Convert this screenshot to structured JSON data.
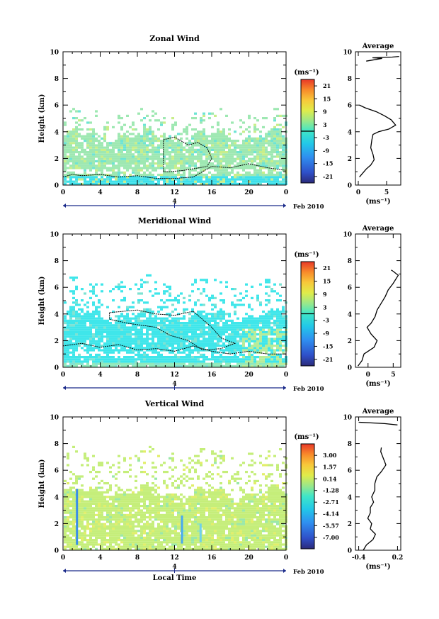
{
  "chart_data": [
    {
      "type": "heatmap",
      "title": "Zonal Wind",
      "ylabel": "Height (km)",
      "xlabel": "",
      "x_ticks": [
        "0",
        "4",
        "8",
        "12",
        "16",
        "20",
        "0"
      ],
      "y_ticks": [
        "0",
        "2",
        "4",
        "6",
        "8",
        "10"
      ],
      "xlim": [
        0,
        24
      ],
      "ylim": [
        0,
        10
      ],
      "date_marker": "4",
      "date_label": "Feb 2010",
      "colorbar": {
        "unit": "(ms⁻¹)",
        "ticks": [
          "21",
          "15",
          "9",
          "3",
          "-3",
          "-9",
          "-15",
          "-21"
        ],
        "range": [
          -24,
          24
        ],
        "zero_line_at": 0
      },
      "field": {
        "base_color": "#9ee8b2",
        "coverage_top_km": 5.4,
        "dense_top_km": 3.8,
        "low_layer_color": "#3ee0ea",
        "low_layer_top_km": 0.7
      },
      "contour_zero": {
        "lower": [
          [
            0,
            0.6
          ],
          [
            1,
            0.8
          ],
          [
            2,
            0.7
          ],
          [
            4,
            0.8
          ],
          [
            6,
            0.6
          ],
          [
            8,
            0.7
          ],
          [
            10,
            0.5
          ],
          [
            12,
            0.5
          ],
          [
            14,
            0.6
          ],
          [
            15,
            1.0
          ],
          [
            16,
            1.4
          ],
          [
            18,
            1.3
          ],
          [
            20,
            1.6
          ],
          [
            22,
            1.3
          ],
          [
            24,
            1.1
          ]
        ],
        "blob": [
          [
            10.8,
            1.0
          ],
          [
            10.8,
            3.4
          ],
          [
            12,
            3.6
          ],
          [
            13.5,
            3.0
          ],
          [
            14.5,
            3.2
          ],
          [
            15.5,
            2.8
          ],
          [
            16,
            2.0
          ],
          [
            15.5,
            1.4
          ],
          [
            13,
            1.1
          ],
          [
            11.5,
            1.0
          ]
        ]
      },
      "average": {
        "title": "Average",
        "xlabel": "(ms⁻¹)",
        "x_ticks": [
          "0",
          "5"
        ],
        "xlim": [
          -0.5,
          7.5
        ],
        "ylim": [
          0,
          10
        ],
        "y_ticks": [
          "0",
          "2",
          "4",
          "6",
          "8",
          "10"
        ],
        "profile": [
          [
            0.2,
            0.6
          ],
          [
            0.8,
            0.9
          ],
          [
            1.4,
            1.2
          ],
          [
            2.2,
            1.5
          ],
          [
            2.8,
            1.9
          ],
          [
            2.6,
            2.3
          ],
          [
            2.2,
            2.8
          ],
          [
            2.4,
            3.4
          ],
          [
            2.6,
            3.8
          ],
          [
            3.6,
            4.0
          ],
          [
            5.4,
            4.2
          ],
          [
            6.6,
            4.5
          ],
          [
            5.8,
            4.9
          ],
          [
            4.6,
            5.2
          ],
          [
            3.2,
            5.5
          ],
          [
            1.2,
            5.8
          ],
          [
            0.2,
            6.0
          ]
        ],
        "profile_top": [
          [
            1.4,
            9.3
          ],
          [
            2.8,
            9.4
          ],
          [
            4.2,
            9.5
          ],
          [
            2.5,
            9.55
          ],
          [
            6.0,
            9.6
          ],
          [
            7.2,
            9.65
          ]
        ]
      }
    },
    {
      "type": "heatmap",
      "title": "Meridional Wind",
      "ylabel": "Height (km)",
      "xlabel": "",
      "x_ticks": [
        "0",
        "4",
        "8",
        "12",
        "16",
        "20",
        "0"
      ],
      "y_ticks": [
        "0",
        "2",
        "4",
        "6",
        "8",
        "10"
      ],
      "xlim": [
        0,
        24
      ],
      "ylim": [
        0,
        10
      ],
      "date_marker": "4",
      "date_label": "Feb 2010",
      "colorbar": {
        "unit": "(ms⁻¹)",
        "ticks": [
          "21",
          "15",
          "9",
          "3",
          "-3",
          "-9",
          "-15",
          "-21"
        ],
        "range": [
          -24,
          24
        ],
        "zero_line_at": 0
      },
      "field": {
        "base_color": "#3fe6ea",
        "coverage_top_km": 6.5,
        "dense_top_km": 4.0,
        "low_layer_color": "#8fe8ba",
        "low_layer_top_km": 0.5
      },
      "contour_zero": {
        "lower": [
          [
            0,
            1.6
          ],
          [
            2,
            1.8
          ],
          [
            4,
            1.5
          ],
          [
            6,
            1.7
          ],
          [
            8,
            1.3
          ],
          [
            10,
            1.4
          ],
          [
            12,
            1.2
          ],
          [
            14,
            1.6
          ],
          [
            16,
            1.2
          ],
          [
            18,
            1.0
          ],
          [
            20,
            1.2
          ],
          [
            22,
            1.0
          ],
          [
            24,
            1.0
          ]
        ],
        "blob": [
          [
            5,
            4.1
          ],
          [
            8,
            4.3
          ],
          [
            10,
            4.0
          ],
          [
            12,
            3.9
          ],
          [
            14,
            4.2
          ],
          [
            16,
            3.0
          ],
          [
            17,
            2.2
          ],
          [
            18.5,
            1.8
          ],
          [
            17,
            1.4
          ],
          [
            15,
            1.3
          ],
          [
            13.5,
            2.0
          ],
          [
            11.5,
            2.4
          ],
          [
            10,
            3.0
          ],
          [
            7,
            3.3
          ],
          [
            5,
            3.6
          ]
        ]
      },
      "average": {
        "title": "Average",
        "xlabel": "(ms⁻¹)",
        "x_ticks": [
          "0",
          "5"
        ],
        "xlim": [
          -2.5,
          6.5
        ],
        "ylim": [
          0,
          10
        ],
        "y_ticks": [
          "0",
          "2",
          "4",
          "6",
          "8",
          "10"
        ],
        "profile": [
          [
            -2.0,
            0.1
          ],
          [
            -1.2,
            0.5
          ],
          [
            -0.8,
            1.0
          ],
          [
            1.2,
            1.5
          ],
          [
            1.8,
            2.0
          ],
          [
            0.6,
            2.5
          ],
          [
            -0.2,
            3.0
          ],
          [
            0.6,
            3.3
          ],
          [
            1.4,
            3.8
          ],
          [
            1.8,
            4.3
          ],
          [
            2.6,
            4.8
          ],
          [
            3.4,
            5.3
          ],
          [
            4.0,
            5.8
          ],
          [
            5.0,
            6.3
          ],
          [
            6.0,
            6.9
          ],
          [
            5.0,
            7.2
          ],
          [
            4.6,
            7.3
          ]
        ]
      }
    },
    {
      "type": "heatmap",
      "title": "Vertical Wind",
      "ylabel": "Height (km)",
      "xlabel": "Local Time",
      "x_ticks": [
        "0",
        "4",
        "8",
        "12",
        "16",
        "20",
        "0"
      ],
      "y_ticks": [
        "0",
        "2",
        "4",
        "6",
        "8",
        "10"
      ],
      "xlim": [
        0,
        24
      ],
      "ylim": [
        0,
        10
      ],
      "date_marker": "4",
      "date_label": "Feb 2010",
      "colorbar": {
        "unit": "(ms⁻¹)",
        "ticks": [
          "3.00",
          "1.57",
          "0.14",
          "-1.28",
          "-2.71",
          "-4.14",
          "-5.57",
          "-7.00"
        ],
        "range": [
          -8.4,
          4.4
        ],
        "zero_line_at": null
      },
      "field": {
        "base_color": "#c5ee7a",
        "coverage_top_km": 7.4,
        "dense_top_km": 4.4,
        "low_layer_color": "#c5ee7a",
        "low_layer_top_km": 0.0
      },
      "streaks": [
        {
          "x": 1.5,
          "y0": 0.4,
          "y1": 4.6,
          "color": "#3a8ee8"
        },
        {
          "x": 12.8,
          "y0": 0.5,
          "y1": 2.6,
          "color": "#48a8f0"
        },
        {
          "x": 14.8,
          "y0": 0.6,
          "y1": 2.0,
          "color": "#6fd0ea"
        }
      ],
      "average": {
        "title": "Average",
        "xlabel": "(ms⁻¹)",
        "x_ticks": [
          "-0.4",
          "0.2"
        ],
        "xlim": [
          -0.45,
          0.25
        ],
        "ylim": [
          0,
          10
        ],
        "y_ticks": [
          "0",
          "2",
          "4",
          "6",
          "8",
          "10"
        ],
        "profile": [
          [
            -0.33,
            0.0
          ],
          [
            -0.28,
            0.4
          ],
          [
            -0.18,
            0.8
          ],
          [
            -0.14,
            1.2
          ],
          [
            -0.22,
            1.6
          ],
          [
            -0.2,
            2.0
          ],
          [
            -0.26,
            2.4
          ],
          [
            -0.22,
            2.8
          ],
          [
            -0.22,
            3.2
          ],
          [
            -0.17,
            3.6
          ],
          [
            -0.2,
            4.0
          ],
          [
            -0.15,
            4.5
          ],
          [
            -0.15,
            5.0
          ],
          [
            -0.12,
            5.5
          ],
          [
            -0.05,
            5.9
          ],
          [
            0.02,
            6.4
          ],
          [
            -0.02,
            6.9
          ],
          [
            -0.06,
            7.4
          ],
          [
            -0.05,
            7.7
          ]
        ],
        "profile_top": [
          [
            -0.4,
            9.6
          ],
          [
            0.0,
            9.5
          ],
          [
            0.2,
            9.4
          ]
        ]
      }
    }
  ]
}
